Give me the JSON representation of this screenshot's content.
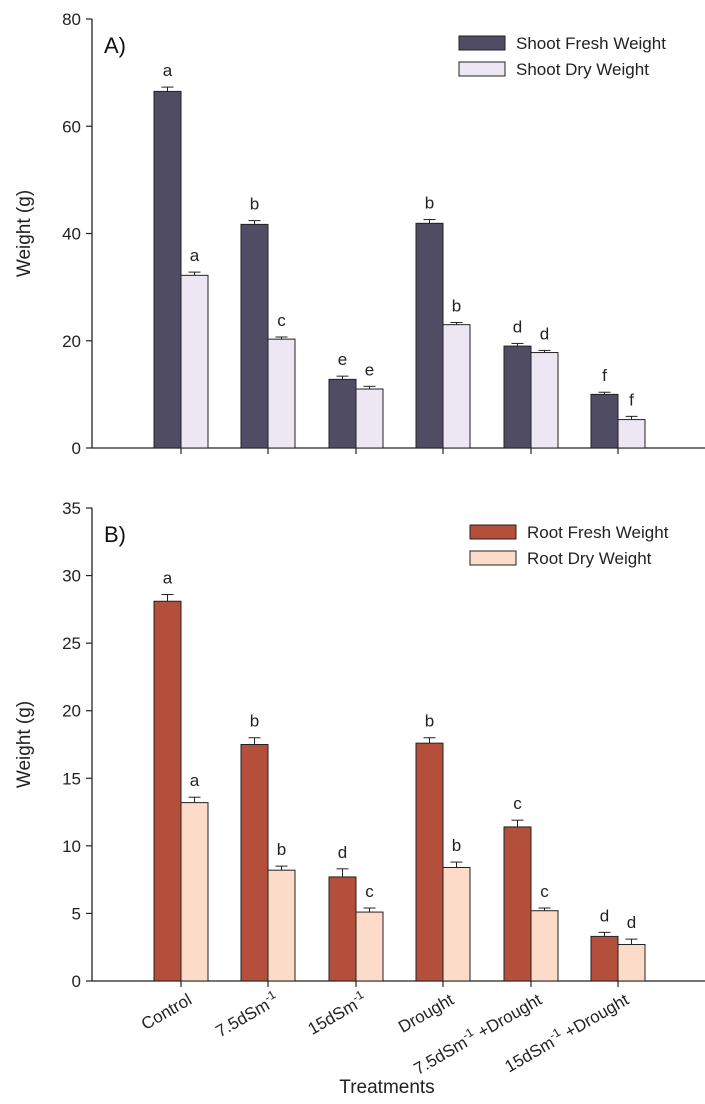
{
  "chart_data": [
    {
      "type": "bar",
      "panel_label": "A)",
      "ylabel": "Weight (g)",
      "ylim": [
        0,
        80
      ],
      "yticks": [
        0,
        20,
        40,
        60,
        80
      ],
      "categories": [
        "Control",
        "7.5dSm-1",
        "15dSm-1",
        "Drought",
        "7.5dSm-1+Drought",
        "15dSm-1+Drought"
      ],
      "legend_position": "top-right",
      "series": [
        {
          "name": "Shoot Fresh Weight",
          "color": "#4f4c63",
          "values": [
            66.5,
            41.7,
            12.8,
            41.9,
            19.0,
            10.0
          ],
          "errors": [
            0.8,
            0.7,
            0.6,
            0.7,
            0.5,
            0.4
          ],
          "labels": [
            "a",
            "b",
            "e",
            "b",
            "d",
            "f"
          ]
        },
        {
          "name": "Shoot Dry Weight",
          "color": "#ece7f3",
          "values": [
            32.2,
            20.3,
            11.0,
            23.0,
            17.8,
            5.3
          ],
          "errors": [
            0.6,
            0.4,
            0.5,
            0.4,
            0.4,
            0.6
          ],
          "labels": [
            "a",
            "c",
            "e",
            "b",
            "d",
            "f"
          ]
        }
      ]
    },
    {
      "type": "bar",
      "panel_label": "B)",
      "xlabel": "Treatments",
      "ylabel": "Weight (g)",
      "ylim": [
        0,
        35
      ],
      "yticks": [
        0,
        5,
        10,
        15,
        20,
        25,
        30,
        35
      ],
      "categories": [
        "Control",
        "7.5dSm-1",
        "15dSm-1",
        "Drought",
        "7.5dSm-1+Drought",
        "15dSm-1+Drought"
      ],
      "legend_position": "top-right",
      "series": [
        {
          "name": "Root Fresh Weight",
          "color": "#b44f3c",
          "values": [
            28.1,
            17.5,
            7.7,
            17.6,
            11.4,
            3.3
          ],
          "errors": [
            0.5,
            0.5,
            0.6,
            0.4,
            0.5,
            0.3
          ],
          "labels": [
            "a",
            "b",
            "d",
            "b",
            "c",
            "d"
          ]
        },
        {
          "name": "Root Dry Weight",
          "color": "#fcdcc8",
          "values": [
            13.2,
            8.2,
            5.1,
            8.4,
            5.2,
            2.7
          ],
          "errors": [
            0.4,
            0.3,
            0.3,
            0.4,
            0.2,
            0.4
          ],
          "labels": [
            "a",
            "b",
            "c",
            "b",
            "c",
            "d"
          ]
        }
      ]
    }
  ]
}
